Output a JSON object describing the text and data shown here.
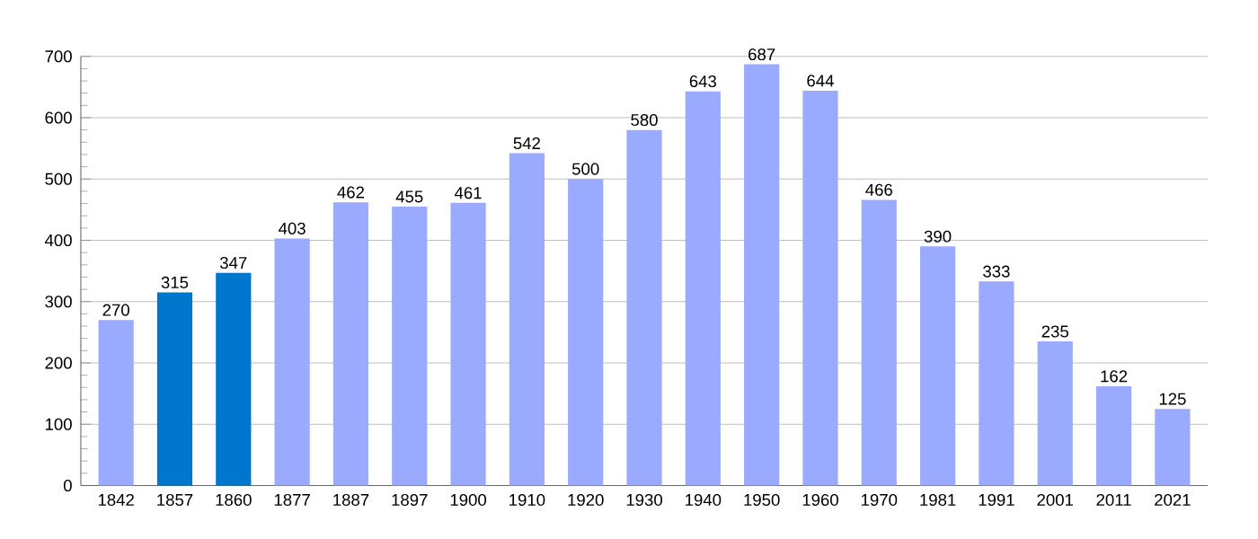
{
  "chart_data": {
    "type": "bar",
    "categories": [
      "1842",
      "1857",
      "1860",
      "1877",
      "1887",
      "1897",
      "1900",
      "1910",
      "1920",
      "1930",
      "1940",
      "1950",
      "1960",
      "1970",
      "1981",
      "1991",
      "2001",
      "2011",
      "2021"
    ],
    "values": [
      270,
      315,
      347,
      403,
      462,
      455,
      461,
      542,
      500,
      580,
      643,
      687,
      644,
      466,
      390,
      333,
      235,
      162,
      125
    ],
    "colors": [
      "#99aaff",
      "#0077cc",
      "#0077cc",
      "#99aaff",
      "#99aaff",
      "#99aaff",
      "#99aaff",
      "#99aaff",
      "#99aaff",
      "#99aaff",
      "#99aaff",
      "#99aaff",
      "#99aaff",
      "#99aaff",
      "#99aaff",
      "#99aaff",
      "#99aaff",
      "#99aaff",
      "#99aaff"
    ],
    "ylim": [
      0,
      700
    ],
    "yticks": [
      0,
      100,
      200,
      300,
      400,
      500,
      600,
      700
    ],
    "grid": "y",
    "data_labels": true
  }
}
